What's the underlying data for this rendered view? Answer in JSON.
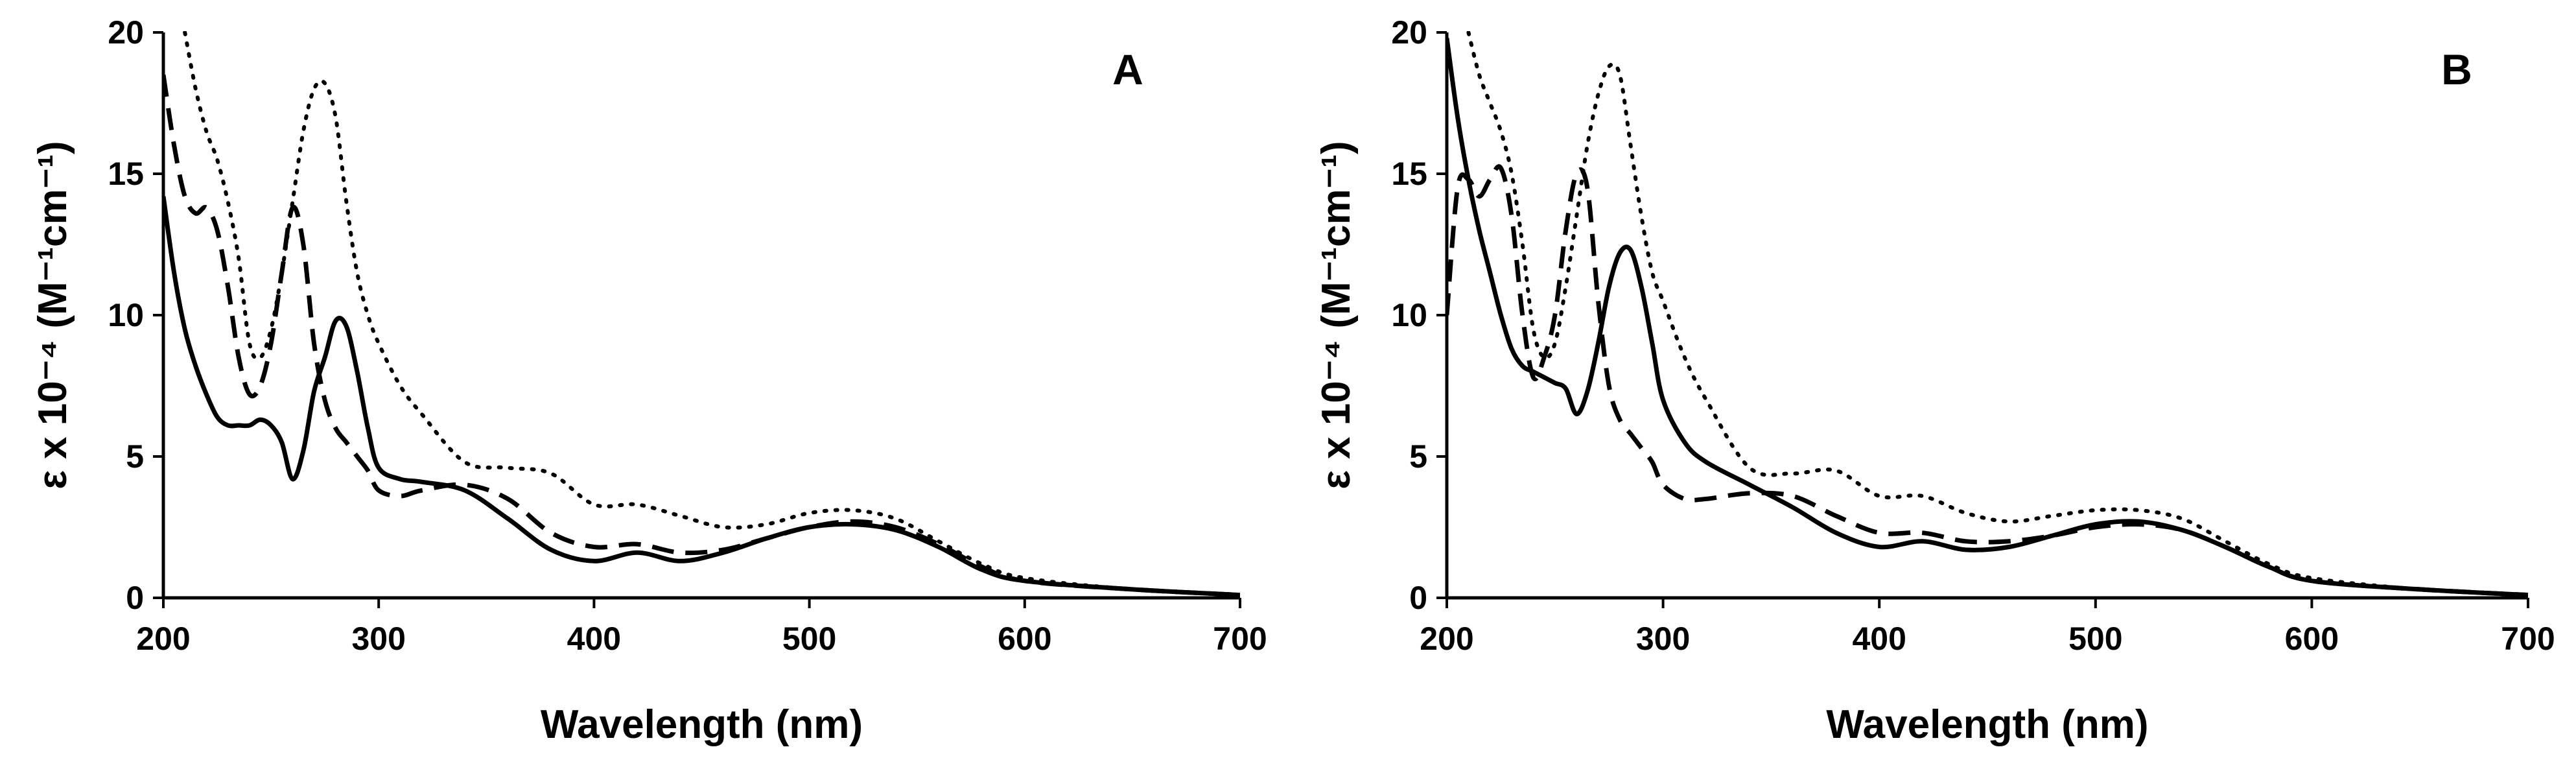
{
  "chart_data": [
    {
      "type": "line",
      "panel_label": "A",
      "xlabel": "Wavelength (nm)",
      "ylabel": "ε x 10⁻⁴ (M⁻¹cm⁻¹)",
      "xlim": [
        200,
        700
      ],
      "ylim": [
        0,
        20
      ],
      "x_ticks": [
        200,
        300,
        400,
        500,
        600,
        700
      ],
      "y_ticks": [
        0,
        5,
        10,
        15,
        20
      ],
      "grid": false,
      "legend": "none",
      "series": [
        {
          "style": "solid",
          "x": [
            200,
            205,
            210,
            215,
            220,
            225,
            230,
            235,
            240,
            245,
            250,
            255,
            260,
            265,
            270,
            275,
            280,
            285,
            290,
            295,
            300,
            310,
            320,
            340,
            360,
            380,
            400,
            420,
            440,
            460,
            480,
            500,
            520,
            540,
            560,
            580,
            600,
            650,
            700
          ],
          "y": [
            14.2,
            11.5,
            9.5,
            8.2,
            7.2,
            6.4,
            6.1,
            6.1,
            6.1,
            6.3,
            6.1,
            5.5,
            4.2,
            5.2,
            7.3,
            8.5,
            9.8,
            9.6,
            8.0,
            6.0,
            4.6,
            4.2,
            4.1,
            3.8,
            2.8,
            1.7,
            1.3,
            1.6,
            1.3,
            1.6,
            2.1,
            2.5,
            2.6,
            2.4,
            1.8,
            1.0,
            0.6,
            0.3,
            0.1
          ]
        },
        {
          "style": "dashed",
          "x": [
            200,
            205,
            210,
            215,
            220,
            225,
            230,
            235,
            240,
            245,
            250,
            255,
            260,
            265,
            270,
            275,
            280,
            285,
            290,
            295,
            300,
            310,
            320,
            340,
            360,
            380,
            400,
            420,
            440,
            460,
            480,
            500,
            520,
            540,
            560,
            580,
            600,
            650,
            700
          ],
          "y": [
            18.5,
            16.0,
            14.2,
            13.6,
            13.8,
            13.0,
            11.0,
            8.5,
            7.2,
            7.5,
            9.0,
            11.5,
            13.8,
            12.5,
            9.0,
            7.0,
            6.0,
            5.5,
            5.0,
            4.5,
            3.8,
            3.6,
            3.8,
            4.0,
            3.5,
            2.3,
            1.8,
            1.9,
            1.6,
            1.7,
            2.1,
            2.5,
            2.7,
            2.5,
            1.9,
            1.1,
            0.6,
            0.3,
            0.1
          ]
        },
        {
          "style": "dotted",
          "x": [
            210,
            215,
            220,
            225,
            230,
            235,
            240,
            245,
            250,
            255,
            260,
            265,
            270,
            275,
            280,
            285,
            290,
            295,
            300,
            310,
            320,
            340,
            360,
            380,
            400,
            420,
            440,
            460,
            480,
            500,
            520,
            540,
            560,
            580,
            600,
            650,
            700
          ],
          "y": [
            20,
            18.0,
            16.5,
            15.5,
            14.0,
            12.0,
            9.0,
            8.5,
            9.5,
            11.5,
            14.0,
            16.5,
            18.0,
            18.2,
            17.0,
            14.0,
            11.5,
            10.0,
            9.0,
            7.5,
            6.5,
            4.8,
            4.6,
            4.4,
            3.3,
            3.3,
            2.9,
            2.5,
            2.6,
            3.0,
            3.1,
            2.8,
            2.0,
            1.2,
            0.7,
            0.3,
            0.1
          ]
        }
      ]
    },
    {
      "type": "line",
      "panel_label": "B",
      "xlabel": "Wavelength (nm)",
      "ylabel": "ε x 10⁻⁴ (M⁻¹cm⁻¹)",
      "xlim": [
        200,
        700
      ],
      "ylim": [
        0,
        20
      ],
      "x_ticks": [
        200,
        300,
        400,
        500,
        600,
        700
      ],
      "y_ticks": [
        0,
        5,
        10,
        15,
        20
      ],
      "grid": false,
      "legend": "none",
      "series": [
        {
          "style": "solid",
          "x": [
            200,
            205,
            210,
            215,
            220,
            225,
            230,
            235,
            240,
            245,
            250,
            255,
            260,
            265,
            270,
            275,
            280,
            285,
            290,
            295,
            300,
            310,
            320,
            340,
            360,
            380,
            400,
            420,
            440,
            460,
            480,
            500,
            520,
            540,
            560,
            580,
            600,
            650,
            700
          ],
          "y": [
            19.8,
            17.0,
            14.8,
            13.0,
            11.5,
            10.0,
            8.8,
            8.2,
            8.0,
            7.8,
            7.6,
            7.4,
            6.5,
            7.3,
            9.0,
            11.0,
            12.2,
            12.3,
            11.0,
            9.0,
            7.0,
            5.5,
            4.8,
            4.0,
            3.2,
            2.3,
            1.8,
            2.0,
            1.7,
            1.8,
            2.2,
            2.6,
            2.7,
            2.4,
            1.8,
            1.1,
            0.6,
            0.3,
            0.1
          ]
        },
        {
          "style": "dashed",
          "x": [
            200,
            205,
            210,
            215,
            220,
            225,
            230,
            235,
            240,
            245,
            250,
            255,
            260,
            265,
            270,
            275,
            280,
            285,
            290,
            295,
            300,
            310,
            320,
            340,
            360,
            380,
            400,
            420,
            440,
            460,
            480,
            500,
            520,
            540,
            560,
            580,
            600,
            650,
            700
          ],
          "y": [
            10.0,
            14.5,
            14.8,
            14.2,
            14.8,
            15.2,
            13.5,
            10.0,
            7.8,
            8.5,
            10.0,
            13.0,
            15.0,
            14.5,
            10.5,
            7.5,
            6.3,
            5.8,
            5.3,
            4.8,
            4.0,
            3.5,
            3.5,
            3.7,
            3.6,
            2.9,
            2.3,
            2.3,
            2.0,
            2.0,
            2.2,
            2.5,
            2.6,
            2.4,
            1.8,
            1.1,
            0.6,
            0.3,
            0.1
          ]
        },
        {
          "style": "dotted",
          "x": [
            210,
            215,
            220,
            225,
            230,
            235,
            240,
            245,
            250,
            255,
            260,
            265,
            270,
            275,
            280,
            285,
            290,
            295,
            300,
            310,
            320,
            340,
            360,
            380,
            400,
            420,
            440,
            460,
            480,
            500,
            520,
            540,
            560,
            580,
            600,
            650,
            700
          ],
          "y": [
            20,
            18.5,
            17.5,
            16.5,
            15.0,
            12.5,
            9.5,
            8.5,
            9.0,
            11.0,
            13.5,
            16.0,
            17.8,
            18.8,
            18.5,
            16.0,
            13.5,
            11.5,
            10.5,
            8.5,
            7.0,
            4.6,
            4.4,
            4.5,
            3.6,
            3.6,
            3.0,
            2.7,
            2.9,
            3.1,
            3.1,
            2.8,
            2.0,
            1.2,
            0.7,
            0.3,
            0.1
          ]
        }
      ]
    }
  ]
}
